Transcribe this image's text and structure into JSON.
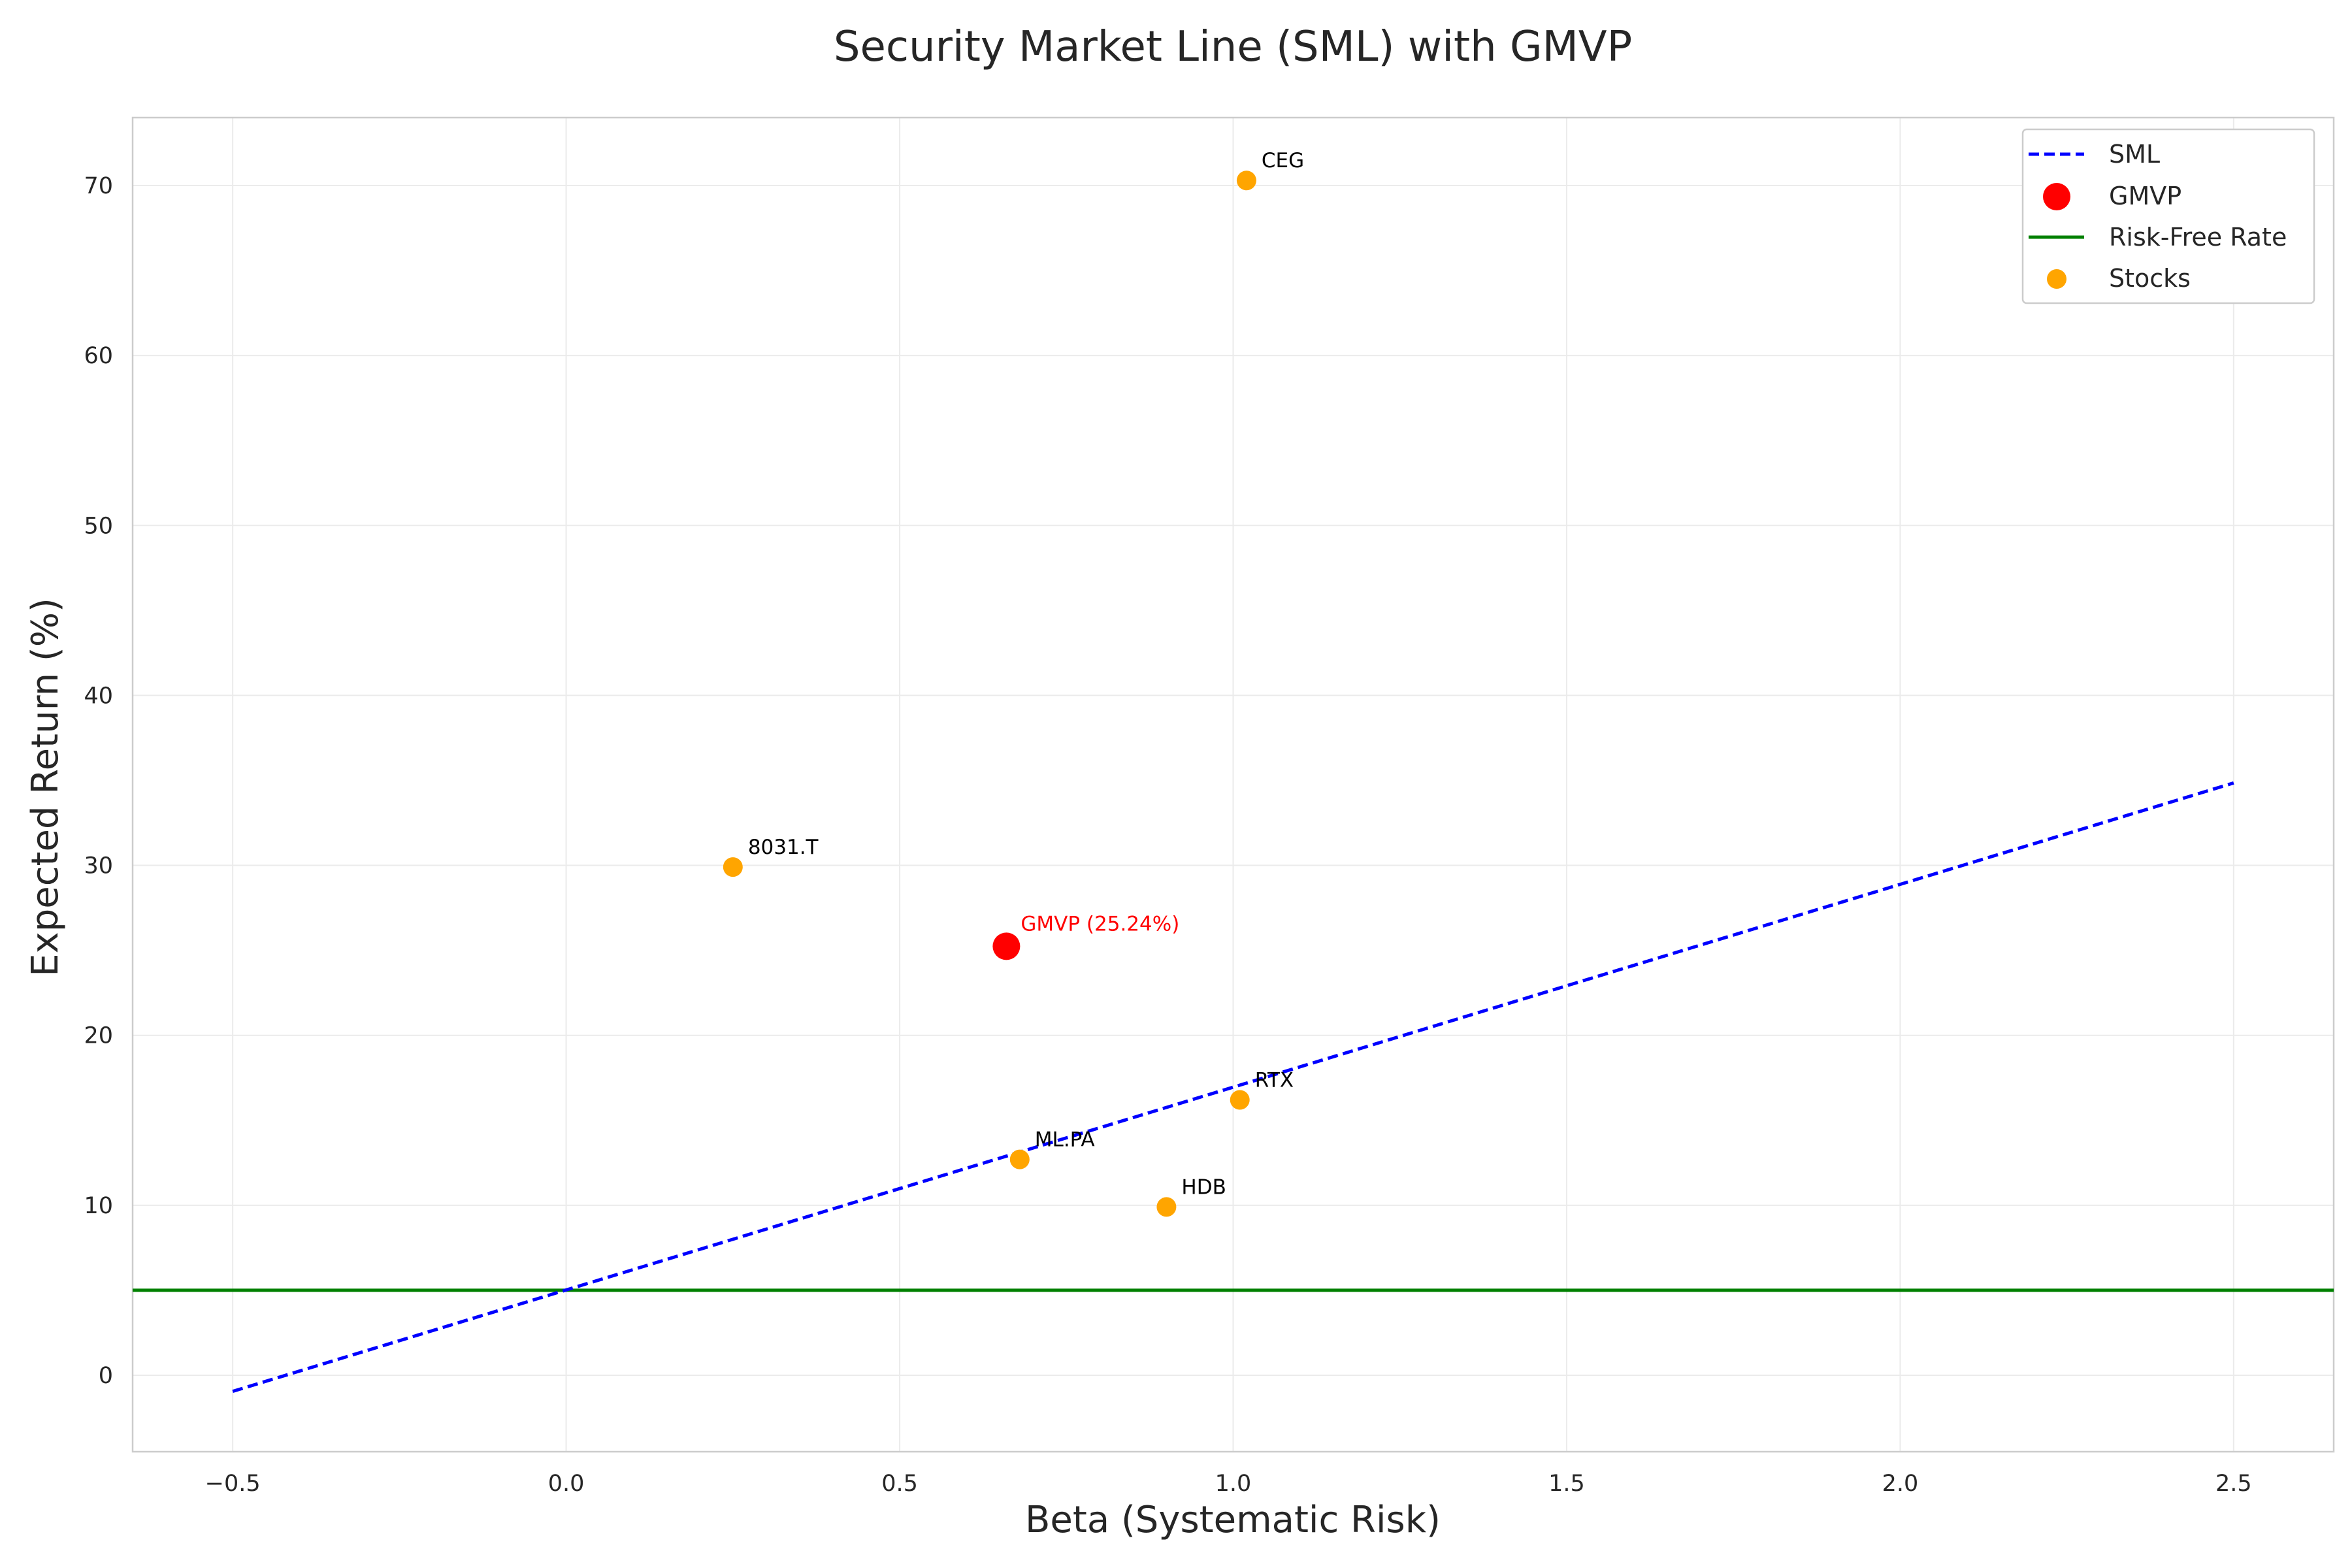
{
  "chart_data": {
    "type": "scatter",
    "title": "Security Market Line (SML) with GMVP",
    "xlabel": "Beta (Systematic Risk)",
    "ylabel": "Expected Return (%)",
    "xlim": [
      -0.65,
      2.65
    ],
    "ylim": [
      -4.5,
      74
    ],
    "x_ticks": [
      -0.5,
      0.0,
      0.5,
      1.0,
      1.5,
      2.0,
      2.5
    ],
    "x_tick_labels": [
      "−0.5",
      "0.0",
      "0.5",
      "1.0",
      "1.5",
      "2.0",
      "2.5"
    ],
    "y_ticks": [
      0,
      10,
      20,
      30,
      40,
      50,
      60,
      70
    ],
    "y_tick_labels": [
      "0",
      "10",
      "20",
      "30",
      "40",
      "50",
      "60",
      "70"
    ],
    "grid": true,
    "legend_position": "top-right",
    "sml": {
      "name": "SML",
      "color": "#0000ff",
      "style": "dashed",
      "x": [
        -0.5,
        2.5
      ],
      "y": [
        -0.95,
        34.85
      ]
    },
    "risk_free": {
      "name": "Risk-Free Rate",
      "color": "#008000",
      "value": 5.0
    },
    "gmvp": {
      "name": "GMVP",
      "label": "GMVP (25.24%)",
      "color": "#ff0000",
      "beta": 0.66,
      "return": 25.24
    },
    "stocks": {
      "name": "Stocks",
      "color": "#ffa500",
      "points": [
        {
          "label": "CEG",
          "beta": 1.02,
          "return": 70.3
        },
        {
          "label": "8031.T",
          "beta": 0.25,
          "return": 29.9
        },
        {
          "label": "RTX",
          "beta": 1.01,
          "return": 16.2
        },
        {
          "label": "ML.PA",
          "beta": 0.68,
          "return": 12.7
        },
        {
          "label": "HDB",
          "beta": 0.9,
          "return": 9.9
        }
      ]
    }
  }
}
